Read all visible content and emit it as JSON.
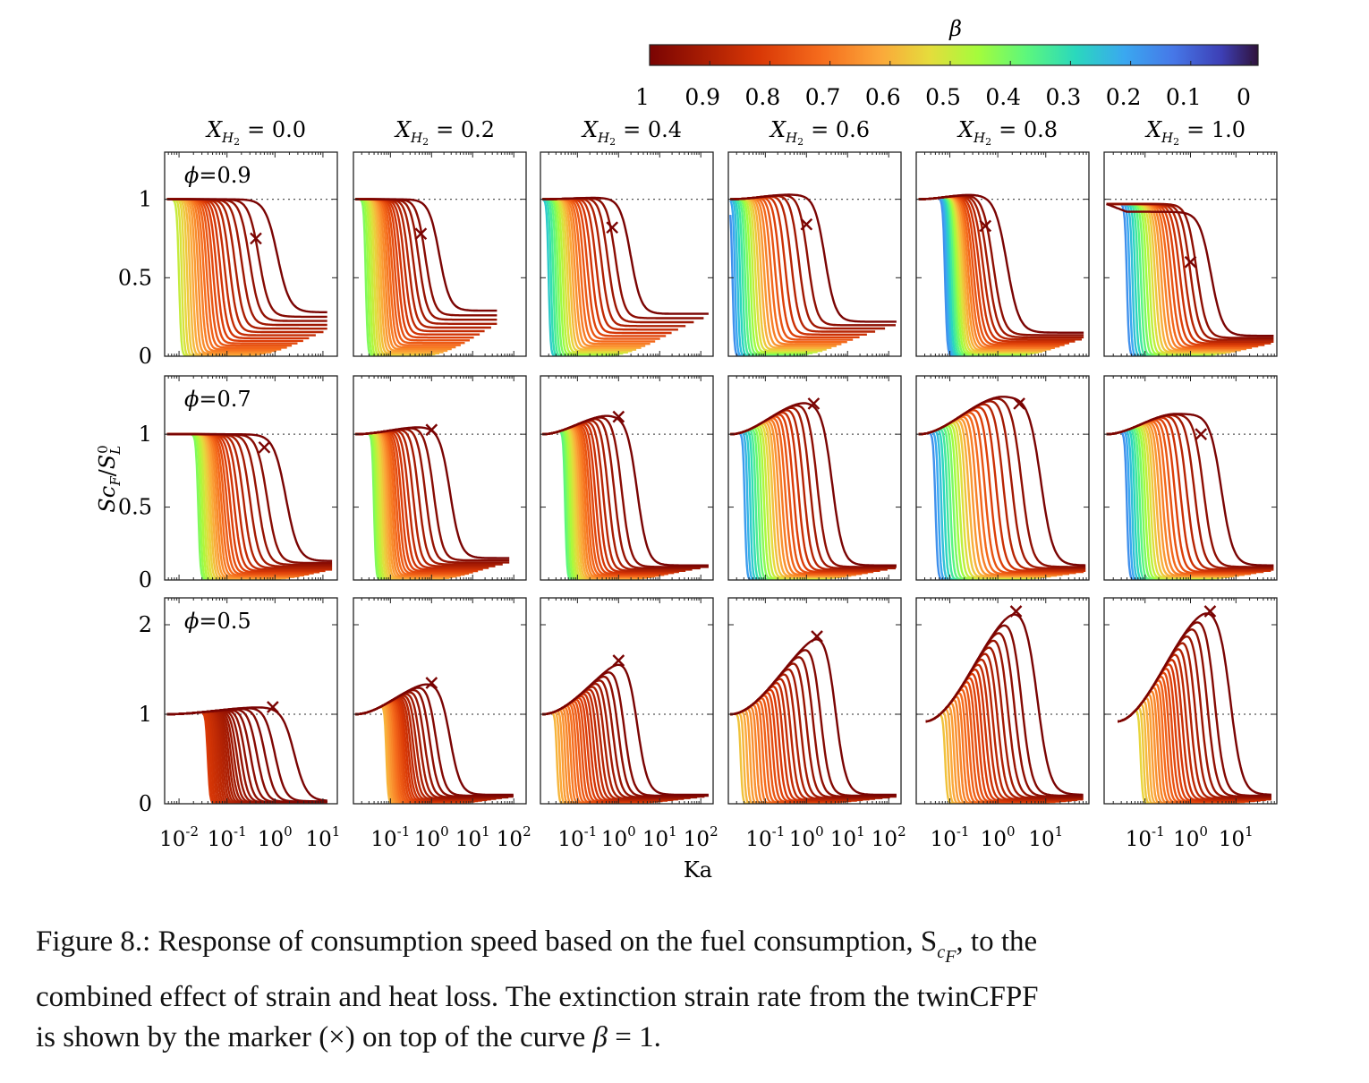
{
  "colorbar": {
    "label": "β",
    "ticks": [
      "1",
      "0.9",
      "0.8",
      "0.7",
      "0.6",
      "0.5",
      "0.4",
      "0.3",
      "0.2",
      "0.1",
      "0"
    ]
  },
  "column_titles": [
    {
      "var": "X",
      "sub": "H",
      "subsub": "2",
      "value": "= 0.0"
    },
    {
      "var": "X",
      "sub": "H",
      "subsub": "2",
      "value": "= 0.2"
    },
    {
      "var": "X",
      "sub": "H",
      "subsub": "2",
      "value": "= 0.4"
    },
    {
      "var": "X",
      "sub": "H",
      "subsub": "2",
      "value": "= 0.6"
    },
    {
      "var": "X",
      "sub": "H",
      "subsub": "2",
      "value": "= 0.8"
    },
    {
      "var": "X",
      "sub": "H",
      "subsub": "2",
      "value": "= 1.0"
    }
  ],
  "row_labels": [
    "ϕ=0.9",
    "ϕ=0.7",
    "ϕ=0.5"
  ],
  "y_axis_label": "Sc_F/S_L^0",
  "x_axis_label": "Ka",
  "y_ticks": [
    [
      "1",
      "0.5",
      "0"
    ],
    [
      "1",
      "0.5",
      "0"
    ],
    [
      "2",
      "1",
      "0"
    ]
  ],
  "x_ticks": [
    [
      {
        "b": "10",
        "e": "-2"
      },
      {
        "b": "10",
        "e": "-1"
      },
      {
        "b": "10",
        "e": "0"
      },
      {
        "b": "10",
        "e": "1"
      }
    ],
    [
      {
        "b": "10",
        "e": "-1"
      },
      {
        "b": "10",
        "e": "0"
      },
      {
        "b": "10",
        "e": "1"
      },
      {
        "b": "10",
        "e": "2"
      }
    ],
    [
      {
        "b": "10",
        "e": "-1"
      },
      {
        "b": "10",
        "e": "0"
      },
      {
        "b": "10",
        "e": "1"
      },
      {
        "b": "10",
        "e": "2"
      }
    ],
    [
      {
        "b": "10",
        "e": "-1"
      },
      {
        "b": "10",
        "e": "0"
      },
      {
        "b": "10",
        "e": "1"
      },
      {
        "b": "10",
        "e": "2"
      }
    ],
    [
      {
        "b": "10",
        "e": "-1"
      },
      {
        "b": "10",
        "e": "0"
      },
      {
        "b": "10",
        "e": "1"
      }
    ],
    [
      {
        "b": "10",
        "e": "-1"
      },
      {
        "b": "10",
        "e": "0"
      },
      {
        "b": "10",
        "e": "1"
      }
    ]
  ],
  "caption": {
    "line1_a": "Figure 8.: Response of consumption speed based on the fuel consumption, S",
    "line1_sub": "c",
    "line1_subsub": "F",
    "line1_b": ", to the",
    "line2": "combined effect of strain and heat loss. The extinction strain rate from the twinCFPF",
    "line3_a": "is shown by the marker (×) on top of the curve ",
    "line3_beta": "β",
    "line3_b": " = 1."
  },
  "chart_data": {
    "type": "line",
    "title": "",
    "xlabel": "Ka",
    "ylabel": "Sc_F/S_L^0",
    "x_scale": "log",
    "colorbar": {
      "label": "β",
      "range": [
        1,
        0
      ]
    },
    "reference_line": 1,
    "marker": "×",
    "panels": [
      {
        "row": 0,
        "col": 0,
        "phi": 0.9,
        "xh2": 0.0,
        "xlim_log10": [
          -2.3,
          1.3
        ],
        "ylim": [
          0,
          1.3
        ],
        "peak": 1.0,
        "peak_logka": -0.3,
        "marker": {
          "ka": 0.4,
          "y": 0.75
        },
        "plateau_min": 0.0,
        "plateau_max": 0.28,
        "ext_logka_min": -2.0,
        "ext_logka_max": -0.8,
        "beta_min": 0.5,
        "x_end_log10": 1.1
      },
      {
        "row": 0,
        "col": 1,
        "phi": 0.9,
        "xh2": 0.2,
        "xlim_log10": [
          -1.9,
          2.3
        ],
        "ylim": [
          0,
          1.3
        ],
        "peak": 1.0,
        "peak_logka": -0.3,
        "marker": {
          "ka": 0.55,
          "y": 0.78
        },
        "plateau_min": 0.0,
        "plateau_max": 0.29,
        "ext_logka_min": -1.6,
        "ext_logka_max": -0.5,
        "beta_min": 0.42,
        "x_end_log10": 1.6
      },
      {
        "row": 0,
        "col": 2,
        "phi": 0.9,
        "xh2": 0.4,
        "xlim_log10": [
          -1.9,
          2.3
        ],
        "ylim": [
          0,
          1.3
        ],
        "peak": 1.01,
        "peak_logka": -0.45,
        "marker": {
          "ka": 0.7,
          "y": 0.82
        },
        "plateau_min": 0.0,
        "plateau_max": 0.27,
        "ext_logka_min": -1.7,
        "ext_logka_max": -0.5,
        "beta_min": 0.28,
        "x_end_log10": 2.2
      },
      {
        "row": 0,
        "col": 3,
        "phi": 0.9,
        "xh2": 0.6,
        "xlim_log10": [
          -1.9,
          2.3
        ],
        "ylim": [
          0,
          1.3
        ],
        "peak": 1.03,
        "peak_logka": -0.35,
        "marker": {
          "ka": 1.0,
          "y": 0.84
        },
        "plateau_min": 0.0,
        "plateau_max": 0.22,
        "ext_logka_min": -1.8,
        "ext_logka_max": -0.5,
        "beta_min": 0.18,
        "x_end_log10": 2.2
      },
      {
        "row": 0,
        "col": 4,
        "phi": 0.9,
        "xh2": 0.8,
        "xlim_log10": [
          -1.7,
          1.9
        ],
        "ylim": [
          0,
          1.3
        ],
        "peak": 1.03,
        "peak_logka": -0.5,
        "marker": {
          "ka": 0.55,
          "y": 0.83
        },
        "plateau_min": 0.0,
        "plateau_max": 0.15,
        "ext_logka_min": -1.1,
        "ext_logka_max": -0.35,
        "beta_min": 0.18,
        "x_end_log10": 1.8
      },
      {
        "row": 0,
        "col": 5,
        "phi": 0.9,
        "xh2": 1.0,
        "xlim_log10": [
          -1.9,
          1.9
        ],
        "ylim": [
          0,
          1.3
        ],
        "peak": 0.97,
        "peak_logka": -1.4,
        "marker": {
          "ka": 1.0,
          "y": 0.6
        },
        "plateau_min": 0.0,
        "plateau_max": 0.13,
        "ext_logka_min": -1.4,
        "ext_logka_max": -0.1,
        "beta_min": 0.18,
        "x_end_log10": 1.85,
        "early_drop": true
      },
      {
        "row": 1,
        "col": 0,
        "phi": 0.7,
        "xh2": 0.0,
        "xlim_log10": [
          -2.3,
          1.3
        ],
        "ylim": [
          0,
          1.4
        ],
        "peak": 1.0,
        "peak_logka": -0.3,
        "marker": {
          "ka": 0.6,
          "y": 0.91
        },
        "plateau_min": 0.0,
        "plateau_max": 0.13,
        "ext_logka_min": -1.6,
        "ext_logka_max": -0.7,
        "beta_min": 0.42,
        "x_end_log10": 1.2
      },
      {
        "row": 1,
        "col": 1,
        "phi": 0.7,
        "xh2": 0.2,
        "xlim_log10": [
          -1.9,
          2.3
        ],
        "ylim": [
          0,
          1.4
        ],
        "peak": 1.05,
        "peak_logka": -0.2,
        "marker": {
          "ka": 1.0,
          "y": 1.03
        },
        "plateau_min": 0.0,
        "plateau_max": 0.15,
        "ext_logka_min": -1.4,
        "ext_logka_max": -0.5,
        "beta_min": 0.42,
        "x_end_log10": 1.9
      },
      {
        "row": 1,
        "col": 2,
        "phi": 0.7,
        "xh2": 0.4,
        "xlim_log10": [
          -1.9,
          2.3
        ],
        "ylim": [
          0,
          1.4
        ],
        "peak": 1.13,
        "peak_logka": -0.2,
        "marker": {
          "ka": 1.0,
          "y": 1.12
        },
        "plateau_min": 0.0,
        "plateau_max": 0.1,
        "ext_logka_min": -1.3,
        "ext_logka_max": -0.4,
        "beta_min": 0.38,
        "x_end_log10": 2.2
      },
      {
        "row": 1,
        "col": 3,
        "phi": 0.7,
        "xh2": 0.6,
        "xlim_log10": [
          -1.9,
          2.3
        ],
        "ylim": [
          0,
          1.4
        ],
        "peak": 1.22,
        "peak_logka": 0.05,
        "marker": {
          "ka": 1.5,
          "y": 1.21
        },
        "plateau_min": 0.0,
        "plateau_max": 0.1,
        "ext_logka_min": -1.5,
        "ext_logka_max": -0.1,
        "beta_min": 0.2,
        "x_end_log10": 2.2
      },
      {
        "row": 1,
        "col": 4,
        "phi": 0.7,
        "xh2": 0.8,
        "xlim_log10": [
          -1.7,
          1.9
        ],
        "ylim": [
          0,
          1.4
        ],
        "peak": 1.26,
        "peak_logka": 0.15,
        "marker": {
          "ka": 2.8,
          "y": 1.21
        },
        "plateau_min": 0.0,
        "plateau_max": 0.1,
        "ext_logka_min": -1.3,
        "ext_logka_max": 0.0,
        "beta_min": 0.18,
        "x_end_log10": 1.85
      },
      {
        "row": 1,
        "col": 5,
        "phi": 0.7,
        "xh2": 1.0,
        "xlim_log10": [
          -1.9,
          1.9
        ],
        "ylim": [
          0,
          1.4
        ],
        "peak": 1.14,
        "peak_logka": -0.3,
        "marker": {
          "ka": 1.7,
          "y": 1.0
        },
        "plateau_min": 0.0,
        "plateau_max": 0.1,
        "ext_logka_min": -1.4,
        "ext_logka_max": -0.2,
        "beta_min": 0.18,
        "x_end_log10": 1.85
      },
      {
        "row": 2,
        "col": 0,
        "phi": 0.5,
        "xh2": 0.0,
        "xlim_log10": [
          -2.3,
          1.3
        ],
        "ylim": [
          0,
          2.3
        ],
        "peak": 1.08,
        "peak_logka": -0.2,
        "marker": {
          "ka": 0.9,
          "y": 1.08
        },
        "plateau_min": 0.0,
        "plateau_max": 0.03,
        "ext_logka_min": -1.4,
        "ext_logka_max": -0.6,
        "beta_min": 0.82,
        "x_end_log10": 1.1
      },
      {
        "row": 2,
        "col": 1,
        "phi": 0.5,
        "xh2": 0.2,
        "xlim_log10": [
          -1.9,
          2.3
        ],
        "ylim": [
          0,
          2.3
        ],
        "peak": 1.36,
        "peak_logka": 0.1,
        "marker": {
          "ka": 1.0,
          "y": 1.35
        },
        "plateau_min": 0.0,
        "plateau_max": 0.1,
        "ext_logka_min": -1.1,
        "ext_logka_max": -0.3,
        "beta_min": 0.6,
        "x_end_log10": 2.0
      },
      {
        "row": 2,
        "col": 2,
        "phi": 0.5,
        "xh2": 0.4,
        "xlim_log10": [
          -1.9,
          2.3
        ],
        "ylim": [
          0,
          2.3
        ],
        "peak": 1.7,
        "peak_logka": 0.6,
        "marker": {
          "ka": 1.0,
          "y": 1.6
        },
        "plateau_min": 0.0,
        "plateau_max": 0.1,
        "ext_logka_min": -1.5,
        "ext_logka_max": -0.1,
        "beta_min": 0.6,
        "x_end_log10": 2.2
      },
      {
        "row": 2,
        "col": 3,
        "phi": 0.5,
        "xh2": 0.6,
        "xlim_log10": [
          -1.9,
          2.3
        ],
        "ylim": [
          0,
          2.3
        ],
        "peak": 1.98,
        "peak_logka": 0.75,
        "marker": {
          "ka": 1.8,
          "y": 1.87
        },
        "plateau_min": 0.0,
        "plateau_max": 0.1,
        "ext_logka_min": -1.6,
        "ext_logka_max": 0.0,
        "beta_min": 0.58,
        "x_end_log10": 2.2
      },
      {
        "row": 2,
        "col": 4,
        "phi": 0.5,
        "xh2": 0.8,
        "xlim_log10": [
          -1.7,
          1.9
        ],
        "ylim": [
          0,
          2.3
        ],
        "peak": 2.2,
        "peak_logka": 0.55,
        "marker": {
          "ka": 2.4,
          "y": 2.15
        },
        "plateau_min": 0.0,
        "plateau_max": 0.1,
        "ext_logka_min": -1.1,
        "ext_logka_max": 0.2,
        "beta_min": 0.58,
        "x_end_log10": 1.8,
        "x_start_log10": -1.5
      },
      {
        "row": 2,
        "col": 5,
        "phi": 0.5,
        "xh2": 1.0,
        "xlim_log10": [
          -1.9,
          1.9
        ],
        "ylim": [
          0,
          2.3
        ],
        "peak": 2.18,
        "peak_logka": 0.5,
        "marker": {
          "ka": 2.7,
          "y": 2.15
        },
        "plateau_min": 0.0,
        "plateau_max": 0.1,
        "ext_logka_min": -1.1,
        "ext_logka_max": 0.2,
        "beta_min": 0.55,
        "x_end_log10": 1.8,
        "x_start_log10": -1.6
      }
    ]
  }
}
